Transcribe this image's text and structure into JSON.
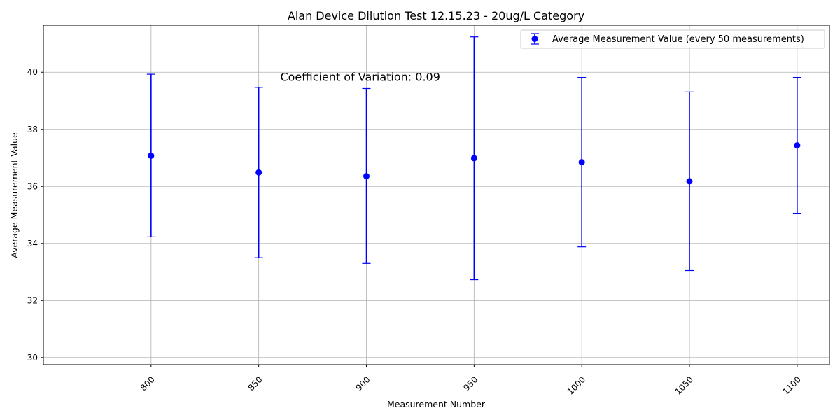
{
  "chart_data": {
    "type": "scatter",
    "title": "Alan Device Dilution Test 12.15.23 - 20ug/L Category",
    "xlabel": "Measurement Number",
    "ylabel": "Average Measurement Value",
    "x": [
      800,
      850,
      900,
      950,
      1000,
      1050,
      1100
    ],
    "x_tick_labels": [
      "800",
      "850",
      "900",
      "950",
      "1000",
      "1050",
      "1100"
    ],
    "xlim": [
      750,
      1115
    ],
    "ylim": [
      29.75,
      41.65
    ],
    "y_ticks": [
      30,
      32,
      34,
      36,
      38,
      40
    ],
    "y_tick_labels": [
      "30",
      "32",
      "34",
      "36",
      "38",
      "40"
    ],
    "grid": true,
    "legend_position": "upper right",
    "series": [
      {
        "name": "Average Measurement Value (every 50 measurements)",
        "color": "#0000ff",
        "marker": "circle",
        "y": [
          37.08,
          36.49,
          36.36,
          36.99,
          36.85,
          36.18,
          37.44
        ],
        "error_low": [
          34.23,
          33.5,
          33.3,
          32.73,
          33.88,
          33.05,
          35.06
        ],
        "error_high": [
          39.93,
          39.47,
          39.43,
          41.24,
          39.82,
          39.31,
          39.82
        ]
      }
    ],
    "annotation": {
      "text": "Coefficient of Variation: 0.09",
      "x": 860,
      "y": 39.7
    }
  }
}
